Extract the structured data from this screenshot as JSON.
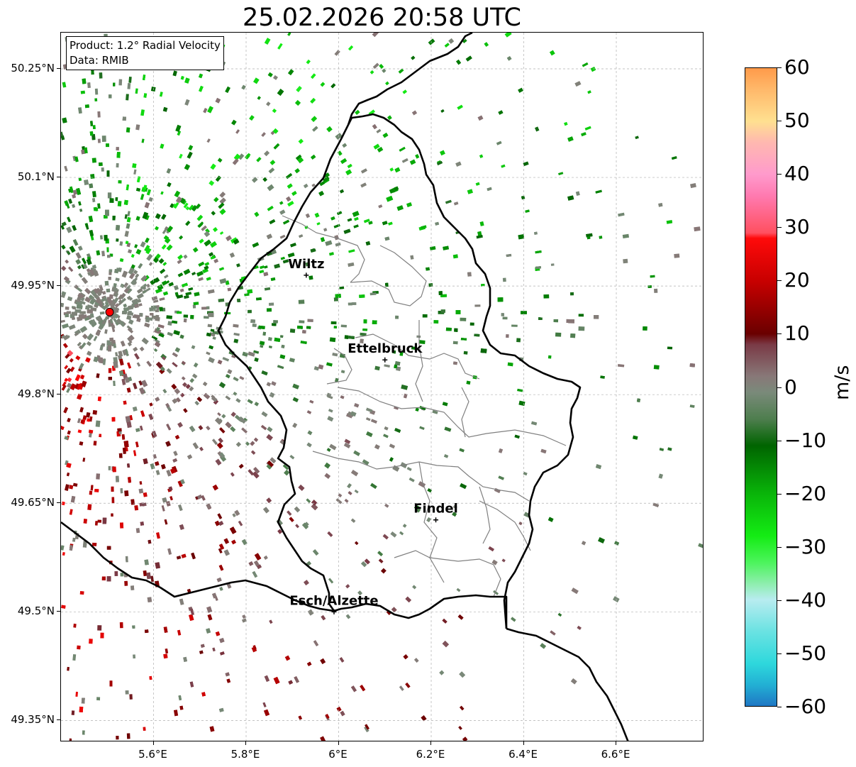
{
  "title": "25.02.2026 20:58 UTC",
  "info_box": {
    "product": "Product: 1.2° Radial Velocity",
    "data_source": "Data: RMIB"
  },
  "map": {
    "lon_range": [
      5.4,
      6.79
    ],
    "lat_range": [
      49.32,
      50.3
    ],
    "lon_ticks": [
      {
        "value": 5.6,
        "label": "5.6°E"
      },
      {
        "value": 5.8,
        "label": "5.8°E"
      },
      {
        "value": 6.0,
        "label": "6°E"
      },
      {
        "value": 6.2,
        "label": "6.2°E"
      },
      {
        "value": 6.4,
        "label": "6.4°E"
      },
      {
        "value": 6.6,
        "label": "6.6°E"
      }
    ],
    "lat_ticks": [
      {
        "value": 50.25,
        "label": "50.25°N"
      },
      {
        "value": 50.1,
        "label": "50.1°N"
      },
      {
        "value": 49.95,
        "label": "49.95°N"
      },
      {
        "value": 49.8,
        "label": "49.8°N"
      },
      {
        "value": 49.65,
        "label": "49.65°N"
      },
      {
        "value": 49.5,
        "label": "49.5°N"
      },
      {
        "value": 49.35,
        "label": "49.35°N"
      }
    ],
    "radar_site": {
      "lon": 5.505,
      "lat": 49.914,
      "color": "#ff0000"
    },
    "cities": [
      {
        "name": "Wiltz",
        "lon": 5.93,
        "lat": 49.965
      },
      {
        "name": "Ettelbruck",
        "lon": 6.1,
        "lat": 49.848
      },
      {
        "name": "Findel",
        "lon": 6.21,
        "lat": 49.627
      },
      {
        "name": "Esch/Alzette",
        "lon": 5.99,
        "lat": 49.5
      }
    ],
    "colors": {
      "border": "#000000",
      "canton": "#808080",
      "grid": "#b0b0b0"
    }
  },
  "colorbar": {
    "unit": "m/s",
    "range": [
      -60,
      60
    ],
    "ticks": [
      {
        "value": 60,
        "label": "60"
      },
      {
        "value": 50,
        "label": "50"
      },
      {
        "value": 40,
        "label": "40"
      },
      {
        "value": 30,
        "label": "30"
      },
      {
        "value": 20,
        "label": "20"
      },
      {
        "value": 10,
        "label": "10"
      },
      {
        "value": 0,
        "label": "0"
      },
      {
        "value": -10,
        "label": "−10"
      },
      {
        "value": -20,
        "label": "−20"
      },
      {
        "value": -30,
        "label": "−30"
      },
      {
        "value": -40,
        "label": "−40"
      },
      {
        "value": -50,
        "label": "−50"
      },
      {
        "value": -60,
        "label": "−60"
      }
    ],
    "stops": [
      {
        "value": -60,
        "color": "#1f77c4"
      },
      {
        "value": -56,
        "color": "#22b0d4"
      },
      {
        "value": -52,
        "color": "#2ed8dc"
      },
      {
        "value": -46,
        "color": "#6ae2e2"
      },
      {
        "value": -40,
        "color": "#b8ecf0"
      },
      {
        "value": -37,
        "color": "#8eeeae"
      },
      {
        "value": -33,
        "color": "#4cf45c"
      },
      {
        "value": -28,
        "color": "#14ec14"
      },
      {
        "value": -20,
        "color": "#09b409"
      },
      {
        "value": -11,
        "color": "#006400"
      },
      {
        "value": -6,
        "color": "#4e7e4e"
      },
      {
        "value": -1,
        "color": "#7a8a7a"
      },
      {
        "value": 2,
        "color": "#887878"
      },
      {
        "value": 8,
        "color": "#7a3a46"
      },
      {
        "value": 10,
        "color": "#6a0000"
      },
      {
        "value": 20,
        "color": "#c80000"
      },
      {
        "value": 28,
        "color": "#ff0a0a"
      },
      {
        "value": 29,
        "color": "#ff5060"
      },
      {
        "value": 36,
        "color": "#ff7ab0"
      },
      {
        "value": 40,
        "color": "#ff9acc"
      },
      {
        "value": 46,
        "color": "#ffb8b0"
      },
      {
        "value": 50,
        "color": "#ffe090"
      },
      {
        "value": 56,
        "color": "#ffb86a"
      },
      {
        "value": 60,
        "color": "#ff9a4a"
      }
    ]
  }
}
